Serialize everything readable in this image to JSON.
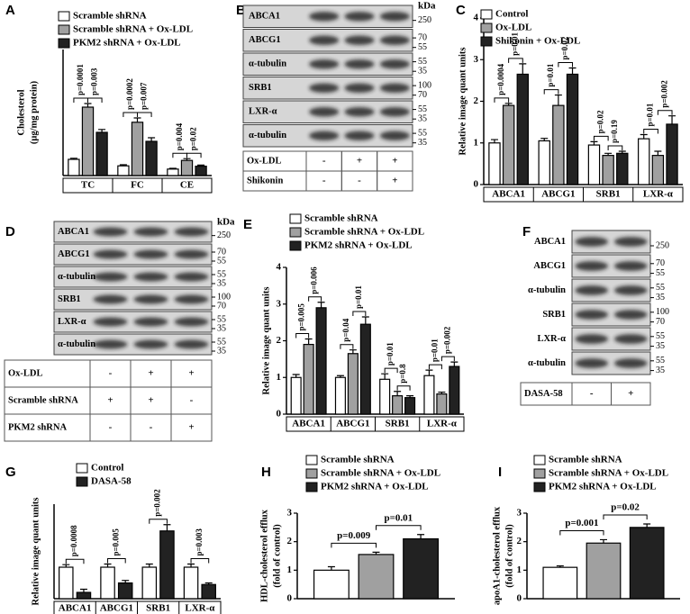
{
  "chart_data": [
    {
      "type": "bar",
      "panel": "A",
      "ylabel": [
        "Cholesterol",
        "(μg/mg protein)"
      ],
      "categories": [
        "TC",
        "FC",
        "CE"
      ],
      "series": [
        {
          "name": "Scramble shRNA",
          "color": "#ffffff",
          "values": [
            45,
            27,
            18
          ],
          "errors": [
            3,
            3,
            2
          ]
        },
        {
          "name": "Scramble shRNA + Ox-LDL",
          "color": "#a0a0a0",
          "values": [
            190,
            148,
            42
          ],
          "errors": [
            10,
            12,
            5
          ]
        },
        {
          "name": "PKM2 shRNA + Ox-LDL",
          "color": "#222222",
          "values": [
            120,
            95,
            26
          ],
          "errors": [
            8,
            10,
            3
          ]
        }
      ],
      "ylim": [
        0,
        350
      ],
      "annotations": [
        "p=0.0001",
        "p=0.003",
        "p=0.0002",
        "p=0.007",
        "p=0.004",
        "p=0.02"
      ]
    },
    {
      "type": "bar",
      "panel": "C",
      "ylabel": [
        "Relative image quant units"
      ],
      "categories": [
        "ABCA1",
        "ABCG1",
        "SRB1",
        "LXR-α"
      ],
      "series": [
        {
          "name": "Control",
          "color": "#ffffff",
          "values": [
            1,
            1.05,
            0.95,
            1.1
          ],
          "errors": [
            0.08,
            0.06,
            0.08,
            0.1
          ]
        },
        {
          "name": "Ox-LDL",
          "color": "#a0a0a0",
          "values": [
            1.9,
            1.9,
            0.7,
            0.7
          ],
          "errors": [
            0.05,
            0.25,
            0.05,
            0.1
          ]
        },
        {
          "name": "Shikonin + Ox-LDL",
          "color": "#222222",
          "values": [
            2.65,
            2.65,
            0.75,
            1.45
          ],
          "errors": [
            0.25,
            0.15,
            0.05,
            0.2
          ]
        }
      ],
      "ylim": [
        0,
        4
      ],
      "yticks": [
        0,
        1,
        2,
        3,
        4
      ],
      "annotations": [
        "p=0.0004",
        "p=0.01",
        "p=0.01",
        "p=0.02",
        "p=0.02",
        "p=0.19",
        "p=0.01",
        "p=0.002"
      ]
    },
    {
      "type": "bar",
      "panel": "E",
      "ylabel": [
        "Relative image quant units"
      ],
      "categories": [
        "ABCA1",
        "ABCG1",
        "SRB1",
        "LXR-α"
      ],
      "series": [
        {
          "name": "Scramble shRNA",
          "color": "#ffffff",
          "values": [
            1,
            1,
            0.95,
            1.05
          ],
          "errors": [
            0.08,
            0.05,
            0.15,
            0.15
          ]
        },
        {
          "name": "Scramble shRNA + Ox-LDL",
          "color": "#a0a0a0",
          "values": [
            1.9,
            1.65,
            0.5,
            0.55
          ],
          "errors": [
            0.15,
            0.1,
            0.12,
            0.05
          ]
        },
        {
          "name": "PKM2 shRNA + Ox-LDL",
          "color": "#222222",
          "values": [
            2.9,
            2.45,
            0.45,
            1.3
          ],
          "errors": [
            0.15,
            0.2,
            0.05,
            0.12
          ]
        }
      ],
      "ylim": [
        0,
        4
      ],
      "yticks": [
        0,
        1,
        2,
        3,
        4
      ],
      "annotations": [
        "p=0.005",
        "p=0.006",
        "p=0.04",
        "p=0.01",
        "p=0.01",
        "p=0.8",
        "p=0.01",
        "p=0.002"
      ]
    },
    {
      "type": "bar",
      "panel": "G",
      "ylabel": [
        "Relative image quant units"
      ],
      "categories": [
        "ABCA1",
        "ABCG1",
        "SRB1",
        "LXR-α"
      ],
      "series": [
        {
          "name": "Control",
          "color": "#ffffff",
          "values": [
            1,
            1,
            1,
            1
          ],
          "errors": [
            0.08,
            0.1,
            0.1,
            0.1
          ]
        },
        {
          "name": "DASA-58",
          "color": "#222222",
          "values": [
            0.2,
            0.5,
            2.15,
            0.45
          ],
          "errors": [
            0.1,
            0.08,
            0.2,
            0.05
          ]
        }
      ],
      "ylim": [
        0,
        3
      ],
      "annotations": [
        "p=0.0008",
        "p=0.005",
        "p=0.002",
        "p=0.003"
      ]
    },
    {
      "type": "bar",
      "panel": "H",
      "ylabel": [
        "HDL-cholesterol efflux",
        "(fold of control)"
      ],
      "categories": [
        null
      ],
      "series": [
        {
          "name": "Scramble shRNA",
          "color": "#ffffff",
          "values": [
            1.0
          ],
          "errors": [
            0.12
          ]
        },
        {
          "name": "Scramble shRNA + Ox-LDL",
          "color": "#a0a0a0",
          "values": [
            1.55
          ],
          "errors": [
            0.08
          ]
        },
        {
          "name": "PKM2 shRNA + Ox-LDL",
          "color": "#222222",
          "values": [
            2.1
          ],
          "errors": [
            0.15
          ]
        }
      ],
      "ylim": [
        0,
        3
      ],
      "yticks": [
        0,
        1,
        2,
        3
      ],
      "annotations": [
        "p=0.009",
        "p=0.01"
      ]
    },
    {
      "type": "bar",
      "panel": "I",
      "ylabel": [
        "apoA1-cholesterol efflux",
        "(fold of control)"
      ],
      "categories": [
        null
      ],
      "series": [
        {
          "name": "Scramble shRNA",
          "color": "#ffffff",
          "values": [
            1.1
          ],
          "errors": [
            0.05
          ]
        },
        {
          "name": "Scramble shRNA + Ox-LDL",
          "color": "#a0a0a0",
          "values": [
            1.95
          ],
          "errors": [
            0.12
          ]
        },
        {
          "name": "PKM2 shRNA + Ox-LDL",
          "color": "#222222",
          "values": [
            2.5
          ],
          "errors": [
            0.12
          ]
        }
      ],
      "ylim": [
        0,
        3
      ],
      "yticks": [
        0,
        1,
        2,
        3
      ],
      "annotations": [
        "p=0.001",
        "p=0.02"
      ]
    }
  ],
  "blots": [
    {
      "panel": "B",
      "kda_label": "kDa",
      "bands": [
        {
          "name": "ABCA1",
          "markers": [
            250
          ]
        },
        {
          "name": "ABCG1",
          "markers": [
            70,
            55
          ]
        },
        {
          "name": "α-tubulin",
          "markers": [
            55,
            35
          ]
        },
        {
          "name": "SRB1",
          "markers": [
            100,
            70
          ]
        },
        {
          "name": "LXR-α",
          "markers": [
            55,
            35
          ]
        },
        {
          "name": "α-tubulin",
          "markers": [
            55,
            35
          ]
        }
      ],
      "rows": [
        {
          "label": "Ox-LDL",
          "cells": [
            "-",
            "+",
            "+"
          ]
        },
        {
          "label": "Shikonin",
          "cells": [
            "-",
            "-",
            "+"
          ]
        }
      ]
    },
    {
      "panel": "D",
      "kda_label": "kDa",
      "bands": [
        {
          "name": "ABCA1",
          "markers": [
            250
          ]
        },
        {
          "name": "ABCG1",
          "markers": [
            70,
            55
          ]
        },
        {
          "name": "α-tubulin",
          "markers": [
            55,
            35
          ]
        },
        {
          "name": "SRB1",
          "markers": [
            100,
            70
          ]
        },
        {
          "name": "LXR-α",
          "markers": [
            55,
            35
          ]
        },
        {
          "name": "α-tubulin",
          "markers": [
            55,
            35
          ]
        }
      ],
      "rows": [
        {
          "label": "Ox-LDL",
          "cells": [
            "-",
            "+",
            "+"
          ]
        },
        {
          "label": "Scramble shRNA",
          "cells": [
            "+",
            "+",
            "-"
          ]
        },
        {
          "label": "PKM2 shRNA",
          "cells": [
            "-",
            "-",
            "+"
          ]
        }
      ]
    },
    {
      "panel": "F",
      "kda_label": "",
      "bands": [
        {
          "name": "ABCA1",
          "markers": [
            250
          ]
        },
        {
          "name": "ABCG1",
          "markers": [
            70,
            55
          ]
        },
        {
          "name": "α-tubulin",
          "markers": [
            55,
            35
          ]
        },
        {
          "name": "SRB1",
          "markers": [
            100,
            70
          ]
        },
        {
          "name": "LXR-α",
          "markers": [
            55,
            35
          ]
        },
        {
          "name": "α-tubulin",
          "markers": [
            55,
            35
          ]
        }
      ],
      "rows": [
        {
          "label": "DASA-58",
          "cells": [
            "-",
            "+"
          ]
        }
      ]
    }
  ]
}
